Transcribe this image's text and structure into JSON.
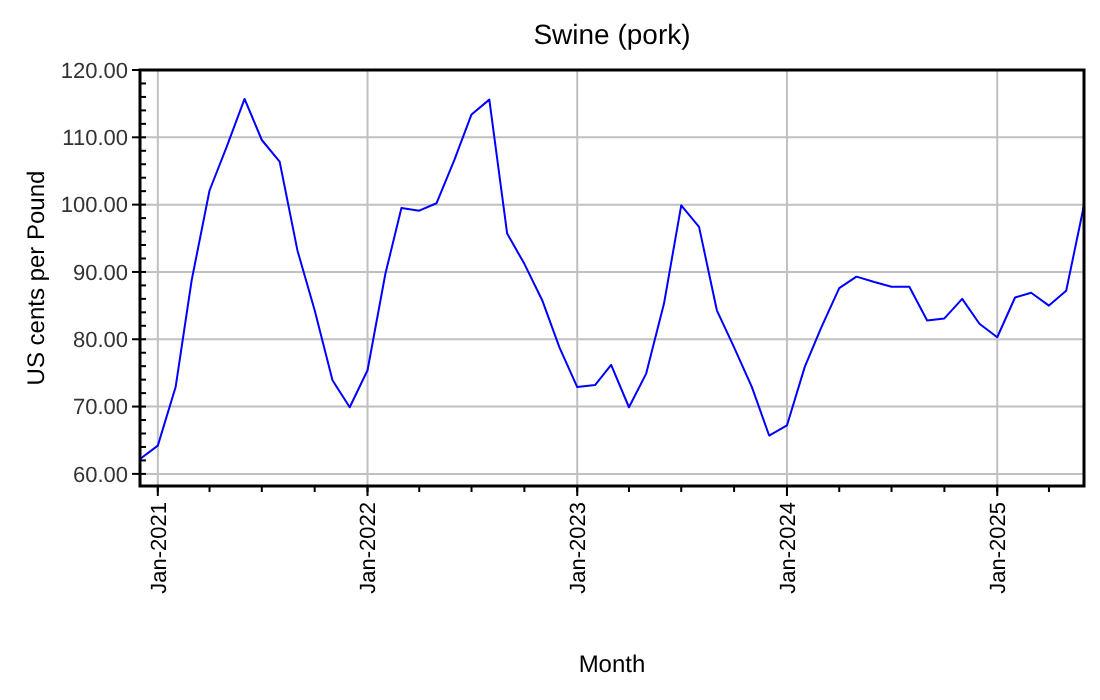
{
  "chart_data": {
    "type": "line",
    "title": "Swine (pork)",
    "xlabel": "Month",
    "ylabel": "US cents per Pound",
    "x": [
      "2020-12",
      "2021-01",
      "2021-02",
      "2021-03",
      "2021-04",
      "2021-05",
      "2021-06",
      "2021-07",
      "2021-08",
      "2021-09",
      "2021-10",
      "2021-11",
      "2021-12",
      "2022-01",
      "2022-02",
      "2022-03",
      "2022-04",
      "2022-05",
      "2022-06",
      "2022-07",
      "2022-08",
      "2022-09",
      "2022-10",
      "2022-11",
      "2022-12",
      "2023-01",
      "2023-02",
      "2023-03",
      "2023-04",
      "2023-05",
      "2023-06",
      "2023-07",
      "2023-08",
      "2023-09",
      "2023-10",
      "2023-11",
      "2023-12",
      "2024-01",
      "2024-02",
      "2024-03",
      "2024-04",
      "2024-05",
      "2024-06",
      "2024-07",
      "2024-08",
      "2024-09",
      "2024-10",
      "2024-11",
      "2024-12",
      "2025-01",
      "2025-02",
      "2025-03",
      "2025-04",
      "2025-05",
      "2025-06"
    ],
    "series": [
      {
        "color": "#0000ff",
        "values": [
          62.2,
          64.2,
          72.9,
          88.8,
          102.1,
          108.6,
          115.7,
          109.6,
          106.4,
          93.2,
          84.3,
          73.9,
          69.9,
          75.4,
          89.7,
          99.5,
          99.1,
          100.2,
          106.6,
          113.4,
          115.6,
          95.7,
          91.2,
          85.8,
          78.8,
          72.9,
          73.2,
          76.2,
          69.9,
          74.9,
          85.3,
          99.9,
          96.7,
          84.3,
          78.8,
          72.9,
          65.7,
          67.2,
          75.9,
          81.8,
          87.6,
          89.3,
          88.5,
          87.8,
          87.8,
          82.8,
          83.1,
          86.0,
          82.3,
          80.3,
          86.2,
          86.9,
          85.0,
          87.2,
          99.9
        ]
      }
    ],
    "xlim": [
      "2020-12",
      "2025-06"
    ],
    "xticks": [
      {
        "value": "2021-01",
        "label": "Jan-2021"
      },
      {
        "value": "2022-01",
        "label": "Jan-2022"
      },
      {
        "value": "2023-01",
        "label": "Jan-2023"
      },
      {
        "value": "2024-01",
        "label": "Jan-2024"
      },
      {
        "value": "2025-01",
        "label": "Jan-2025"
      }
    ],
    "ylim": [
      58.2,
      120
    ],
    "yticks": [
      {
        "value": 60,
        "label": "60.00"
      },
      {
        "value": 70,
        "label": "70.00"
      },
      {
        "value": 80,
        "label": "80.00"
      },
      {
        "value": 90,
        "label": "90.00"
      },
      {
        "value": 100,
        "label": "100.00"
      },
      {
        "value": 110,
        "label": "110.00"
      },
      {
        "value": 120,
        "label": "120.00"
      }
    ],
    "grid": true,
    "line_style": "solid",
    "marker": "none"
  }
}
